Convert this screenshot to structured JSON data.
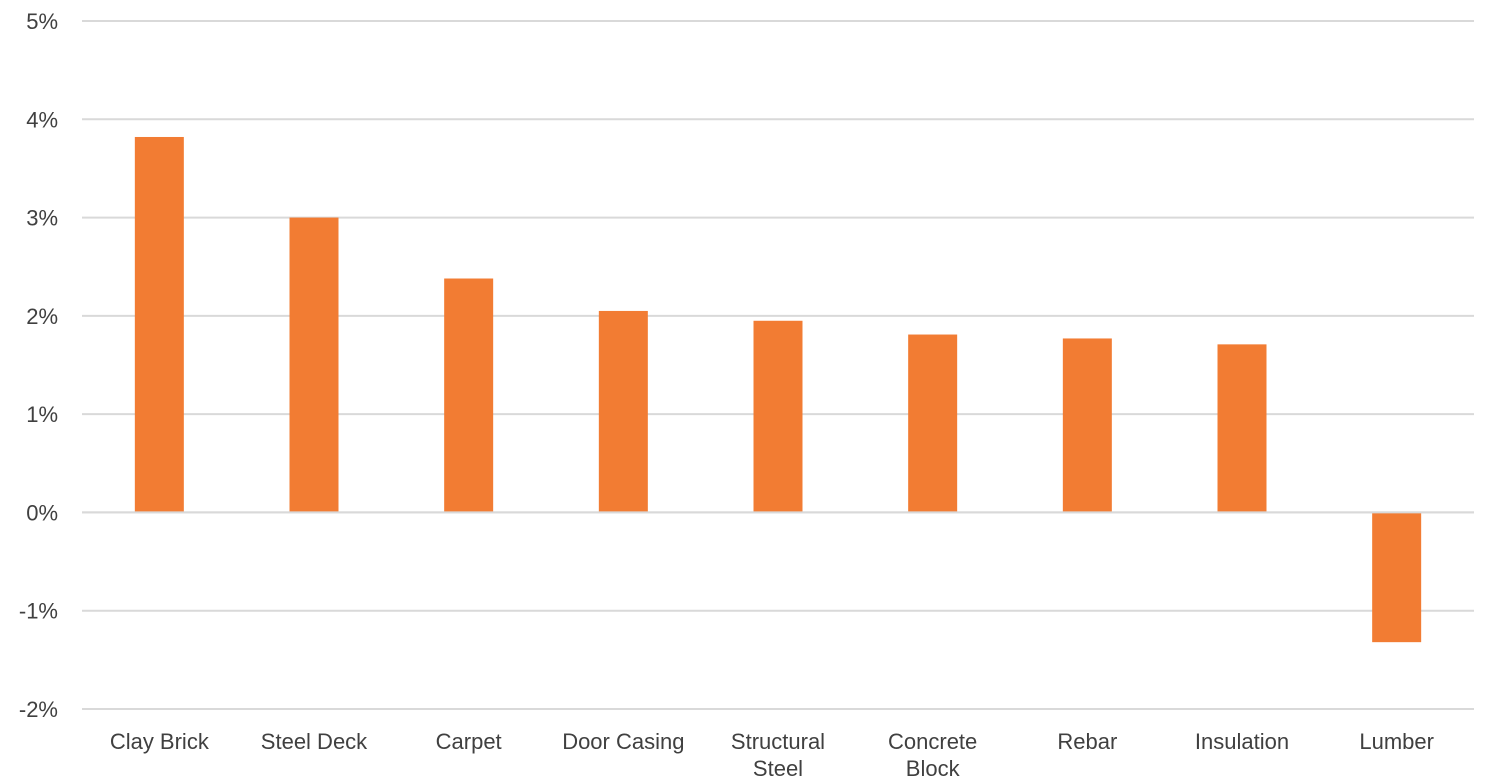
{
  "chart_data": {
    "type": "bar",
    "categories": [
      [
        "Clay Brick"
      ],
      [
        "Steel Deck"
      ],
      [
        "Carpet"
      ],
      [
        "Door Casing"
      ],
      [
        "Structural",
        "Steel"
      ],
      [
        "Concrete",
        "Block"
      ],
      [
        "Rebar"
      ],
      [
        "Insulation"
      ],
      [
        "Lumber"
      ]
    ],
    "values": [
      3.82,
      3.0,
      2.38,
      2.05,
      1.95,
      1.81,
      1.77,
      1.71,
      -1.32
    ],
    "ylim": [
      -2,
      5
    ],
    "yticks": [
      5,
      4,
      3,
      2,
      1,
      0,
      -1,
      -2
    ],
    "ytick_labels": [
      "5%",
      "4%",
      "3%",
      "2%",
      "1%",
      "0%",
      "-1%",
      "-2%"
    ],
    "grid": true,
    "bar_color": "#f27c33",
    "grid_color": "#d9d9d9",
    "text_color": "#404040"
  }
}
